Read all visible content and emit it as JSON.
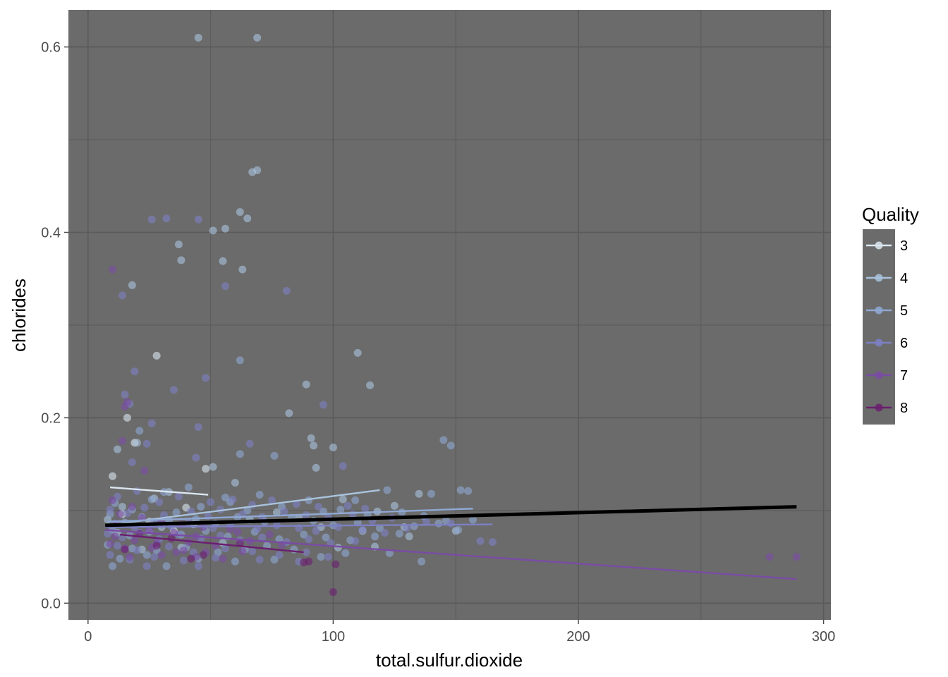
{
  "chart_data": {
    "type": "scatter",
    "xlabel": "total.sulfur.dioxide",
    "ylabel": "chlorides",
    "xlim": [
      -8,
      303
    ],
    "ylim": [
      -0.018,
      0.64
    ],
    "x_ticks": [
      0,
      100,
      200,
      300
    ],
    "y_ticks": [
      0.0,
      0.2,
      0.4,
      0.6
    ],
    "x_tick_labels": [
      "0",
      "100",
      "200",
      "300"
    ],
    "y_tick_labels": [
      "0.0",
      "0.2",
      "0.4",
      "0.6"
    ],
    "grid": true,
    "legend": {
      "title": "Quality",
      "position": "right",
      "entries": [
        "3",
        "4",
        "5",
        "6",
        "7",
        "8"
      ]
    },
    "panel_color": "#6b6b6b",
    "grid_color": "#5a5a5a",
    "series": [
      {
        "name": "3",
        "color": "#dbe6ef",
        "trend": [
          [
            9,
            0.125
          ],
          [
            49,
            0.117
          ]
        ],
        "points": [
          [
            28,
            0.267
          ],
          [
            16,
            0.2
          ],
          [
            19,
            0.173
          ],
          [
            10,
            0.137
          ],
          [
            48,
            0.145
          ],
          [
            14,
            0.096
          ],
          [
            35,
            0.078
          ],
          [
            40,
            0.103
          ],
          [
            25,
            0.088
          ]
        ]
      },
      {
        "name": "4",
        "color": "#a9c3dd",
        "trend": [
          [
            7,
            0.084
          ],
          [
            119,
            0.122
          ]
        ],
        "points": [
          [
            45,
            0.61
          ],
          [
            69,
            0.61
          ],
          [
            67,
            0.465
          ],
          [
            69,
            0.467
          ],
          [
            62,
            0.422
          ],
          [
            65,
            0.415
          ],
          [
            56,
            0.404
          ],
          [
            51,
            0.402
          ],
          [
            37,
            0.387
          ],
          [
            55,
            0.369
          ],
          [
            38,
            0.37
          ],
          [
            63,
            0.36
          ],
          [
            18,
            0.343
          ],
          [
            110,
            0.27
          ],
          [
            115,
            0.235
          ],
          [
            89,
            0.236
          ],
          [
            82,
            0.205
          ],
          [
            20,
            0.173
          ],
          [
            12,
            0.166
          ],
          [
            91,
            0.178
          ],
          [
            92,
            0.17
          ],
          [
            100,
            0.168
          ],
          [
            51,
            0.147
          ],
          [
            93,
            0.146
          ],
          [
            125,
            0.105
          ],
          [
            135,
            0.118
          ],
          [
            60,
            0.13
          ],
          [
            104,
            0.112
          ],
          [
            33,
            0.12
          ],
          [
            14,
            0.104
          ],
          [
            27,
            0.113
          ],
          [
            77,
            0.098
          ],
          [
            86,
            0.092
          ],
          [
            118,
            0.099
          ],
          [
            43,
            0.085
          ],
          [
            8,
            0.09
          ],
          [
            12,
            0.076
          ],
          [
            30,
            0.082
          ],
          [
            66,
            0.09
          ],
          [
            95,
            0.082
          ],
          [
            112,
            0.078
          ],
          [
            129,
            0.082
          ],
          [
            150,
            0.078
          ],
          [
            22,
            0.058
          ],
          [
            38,
            0.06
          ],
          [
            55,
            0.065
          ],
          [
            102,
            0.06
          ],
          [
            117,
            0.061
          ],
          [
            131,
            0.072
          ]
        ]
      },
      {
        "name": "5",
        "color": "#8fa8d4",
        "trend": [
          [
            8,
            0.088
          ],
          [
            157,
            0.102
          ]
        ],
        "points": [
          [
            62,
            0.262
          ],
          [
            21,
            0.186
          ],
          [
            145,
            0.176
          ],
          [
            148,
            0.17
          ],
          [
            76,
            0.159
          ],
          [
            62,
            0.161
          ],
          [
            31,
            0.12
          ],
          [
            41,
            0.125
          ],
          [
            56,
            0.114
          ],
          [
            70,
            0.117
          ],
          [
            90,
            0.111
          ],
          [
            109,
            0.111
          ],
          [
            122,
            0.122
          ],
          [
            140,
            0.118
          ],
          [
            152,
            0.122
          ],
          [
            155,
            0.121
          ],
          [
            11,
            0.108
          ],
          [
            18,
            0.101
          ],
          [
            26,
            0.112
          ],
          [
            36,
            0.098
          ],
          [
            46,
            0.104
          ],
          [
            58,
            0.109
          ],
          [
            65,
            0.1
          ],
          [
            79,
            0.104
          ],
          [
            96,
            0.099
          ],
          [
            103,
            0.101
          ],
          [
            114,
            0.095
          ],
          [
            128,
            0.098
          ],
          [
            137,
            0.094
          ],
          [
            146,
            0.089
          ],
          [
            157,
            0.09
          ],
          [
            9,
            0.096
          ],
          [
            15,
            0.087
          ],
          [
            22,
            0.093
          ],
          [
            33,
            0.089
          ],
          [
            44,
            0.091
          ],
          [
            52,
            0.086
          ],
          [
            61,
            0.093
          ],
          [
            72,
            0.088
          ],
          [
            83,
            0.092
          ],
          [
            92,
            0.089
          ],
          [
            100,
            0.084
          ],
          [
            110,
            0.087
          ],
          [
            119,
            0.081
          ],
          [
            133,
            0.083
          ],
          [
            143,
            0.086
          ],
          [
            151,
            0.079
          ],
          [
            10,
            0.079
          ],
          [
            17,
            0.073
          ],
          [
            25,
            0.077
          ],
          [
            38,
            0.074
          ],
          [
            48,
            0.078
          ],
          [
            57,
            0.072
          ],
          [
            68,
            0.077
          ],
          [
            78,
            0.069
          ],
          [
            88,
            0.074
          ],
          [
            97,
            0.071
          ],
          [
            107,
            0.068
          ],
          [
            117,
            0.072
          ],
          [
            127,
            0.075
          ],
          [
            8,
            0.063
          ],
          [
            18,
            0.059
          ],
          [
            28,
            0.057
          ],
          [
            40,
            0.06
          ],
          [
            53,
            0.055
          ],
          [
            64,
            0.058
          ],
          [
            73,
            0.062
          ],
          [
            84,
            0.058
          ],
          [
            95,
            0.05
          ],
          [
            105,
            0.054
          ],
          [
            123,
            0.054
          ],
          [
            136,
            0.045
          ],
          [
            13,
            0.048
          ],
          [
            24,
            0.052
          ],
          [
            45,
            0.048
          ],
          [
            60,
            0.045
          ],
          [
            76,
            0.047
          ],
          [
            10,
            0.04
          ],
          [
            32,
            0.04
          ]
        ]
      },
      {
        "name": "6",
        "color": "#7d80c4",
        "trend": [
          [
            7,
            0.082
          ],
          [
            165,
            0.085
          ]
        ],
        "points": [
          [
            26,
            0.414
          ],
          [
            32,
            0.415
          ],
          [
            45,
            0.414
          ],
          [
            56,
            0.342
          ],
          [
            81,
            0.337
          ],
          [
            14,
            0.332
          ],
          [
            15,
            0.225
          ],
          [
            17,
            0.215
          ],
          [
            19,
            0.25
          ],
          [
            35,
            0.23
          ],
          [
            48,
            0.243
          ],
          [
            96,
            0.214
          ],
          [
            26,
            0.194
          ],
          [
            45,
            0.19
          ],
          [
            24,
            0.172
          ],
          [
            18,
            0.152
          ],
          [
            44,
            0.157
          ],
          [
            66,
            0.172
          ],
          [
            104,
            0.148
          ],
          [
            12,
            0.115
          ],
          [
            20,
            0.121
          ],
          [
            29,
            0.109
          ],
          [
            37,
            0.115
          ],
          [
            50,
            0.109
          ],
          [
            59,
            0.112
          ],
          [
            67,
            0.106
          ],
          [
            75,
            0.111
          ],
          [
            85,
            0.107
          ],
          [
            94,
            0.104
          ],
          [
            106,
            0.105
          ],
          [
            113,
            0.102
          ],
          [
            9,
            0.101
          ],
          [
            16,
            0.097
          ],
          [
            23,
            0.103
          ],
          [
            31,
            0.095
          ],
          [
            42,
            0.099
          ],
          [
            49,
            0.094
          ],
          [
            54,
            0.101
          ],
          [
            63,
            0.096
          ],
          [
            71,
            0.093
          ],
          [
            80,
            0.099
          ],
          [
            89,
            0.095
          ],
          [
            98,
            0.092
          ],
          [
            108,
            0.096
          ],
          [
            116,
            0.089
          ],
          [
            124,
            0.092
          ],
          [
            138,
            0.088
          ],
          [
            148,
            0.086
          ],
          [
            160,
            0.067
          ],
          [
            165,
            0.066
          ],
          [
            11,
            0.086
          ],
          [
            19,
            0.082
          ],
          [
            27,
            0.088
          ],
          [
            34,
            0.083
          ],
          [
            41,
            0.087
          ],
          [
            51,
            0.081
          ],
          [
            58,
            0.085
          ],
          [
            69,
            0.08
          ],
          [
            77,
            0.084
          ],
          [
            86,
            0.081
          ],
          [
            93,
            0.078
          ],
          [
            102,
            0.082
          ],
          [
            112,
            0.079
          ],
          [
            121,
            0.076
          ],
          [
            130,
            0.081
          ],
          [
            8,
            0.075
          ],
          [
            14,
            0.071
          ],
          [
            21,
            0.076
          ],
          [
            29,
            0.069
          ],
          [
            37,
            0.074
          ],
          [
            46,
            0.07
          ],
          [
            54,
            0.073
          ],
          [
            62,
            0.068
          ],
          [
            71,
            0.071
          ],
          [
            81,
            0.066
          ],
          [
            90,
            0.069
          ],
          [
            99,
            0.065
          ],
          [
            109,
            0.067
          ],
          [
            12,
            0.062
          ],
          [
            20,
            0.057
          ],
          [
            33,
            0.061
          ],
          [
            43,
            0.055
          ],
          [
            56,
            0.059
          ],
          [
            67,
            0.056
          ],
          [
            78,
            0.052
          ],
          [
            89,
            0.055
          ],
          [
            98,
            0.05
          ],
          [
            17,
            0.047
          ],
          [
            27,
            0.05
          ],
          [
            39,
            0.046
          ],
          [
            52,
            0.049
          ],
          [
            70,
            0.047
          ],
          [
            86,
            0.045
          ],
          [
            9,
            0.052
          ],
          [
            45,
            0.04
          ],
          [
            24,
            0.04
          ]
        ]
      },
      {
        "name": "7",
        "color": "#7a4ba6",
        "trend": [
          [
            7,
            0.079
          ],
          [
            289,
            0.026
          ]
        ],
        "points": [
          [
            10,
            0.36
          ],
          [
            16,
            0.217
          ],
          [
            15,
            0.212
          ],
          [
            14,
            0.175
          ],
          [
            23,
            0.143
          ],
          [
            10,
            0.111
          ],
          [
            18,
            0.104
          ],
          [
            13,
            0.096
          ],
          [
            22,
            0.092
          ],
          [
            30,
            0.087
          ],
          [
            38,
            0.085
          ],
          [
            47,
            0.082
          ],
          [
            58,
            0.08
          ],
          [
            12,
            0.086
          ],
          [
            25,
            0.079
          ],
          [
            35,
            0.076
          ],
          [
            44,
            0.072
          ],
          [
            61,
            0.077
          ],
          [
            74,
            0.074
          ],
          [
            11,
            0.072
          ],
          [
            19,
            0.068
          ],
          [
            28,
            0.065
          ],
          [
            41,
            0.066
          ],
          [
            52,
            0.062
          ],
          [
            66,
            0.067
          ],
          [
            79,
            0.063
          ],
          [
            15,
            0.059
          ],
          [
            26,
            0.06
          ],
          [
            39,
            0.057
          ],
          [
            48,
            0.055
          ],
          [
            63,
            0.056
          ],
          [
            9,
            0.064
          ],
          [
            30,
            0.052
          ],
          [
            44,
            0.05
          ],
          [
            55,
            0.048
          ],
          [
            278,
            0.05
          ],
          [
            289,
            0.05
          ],
          [
            17,
            0.05
          ],
          [
            36,
            0.055
          ]
        ]
      },
      {
        "name": "8",
        "color": "#6b1e6f",
        "trend": [
          [
            13,
            0.074
          ],
          [
            88,
            0.055
          ]
        ],
        "points": [
          [
            100,
            0.012
          ],
          [
            88,
            0.044
          ],
          [
            90,
            0.045
          ],
          [
            101,
            0.042
          ],
          [
            42,
            0.048
          ],
          [
            21,
            0.075
          ],
          [
            28,
            0.062
          ],
          [
            15,
            0.058
          ],
          [
            34,
            0.07
          ],
          [
            47,
            0.052
          ],
          [
            62,
            0.065
          ]
        ]
      },
      {
        "name": "",
        "color": "#000000",
        "trend": [
          [
            7,
            0.084
          ],
          [
            289,
            0.104
          ]
        ],
        "points": []
      }
    ]
  }
}
